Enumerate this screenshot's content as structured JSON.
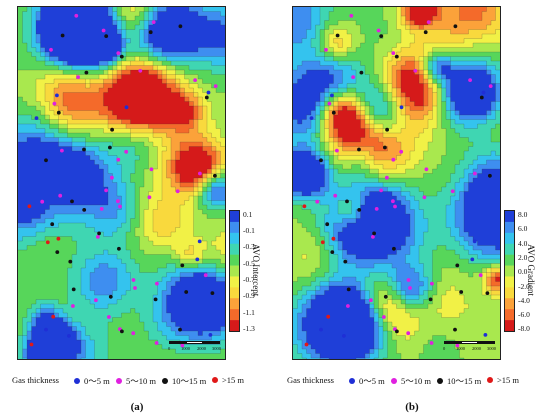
{
  "panels": [
    {
      "id": "a",
      "caption": "(a)",
      "colorbar_label": "AVO Intercept",
      "colorbar_ticks": [
        "0.1",
        "-0.1",
        "-0.3",
        "-0.5",
        "-0.7",
        "-0.9",
        "-1.1",
        "-1.3"
      ],
      "colorbar_range": [
        -1.3,
        0.1
      ]
    },
    {
      "id": "b",
      "caption": "(b)",
      "colorbar_label": "AVO Gradient",
      "colorbar_ticks": [
        "8.0",
        "6.0",
        "4.0",
        "2.0",
        "0.0",
        "-2.0",
        "-4.0",
        "-6.0",
        "-8.0"
      ],
      "colorbar_range": [
        -8.0,
        8.0
      ]
    }
  ],
  "scalebar": {
    "ticks": [
      "0",
      "1000",
      "2000",
      "3000"
    ],
    "unit": "m"
  },
  "legend": {
    "title": "Gas thickness",
    "items": [
      {
        "label": "0～5 m",
        "color": "#1f2fd6"
      },
      {
        "label": "5～10 m",
        "color": "#e020e0"
      },
      {
        "label": "10～15 m",
        "color": "#111111"
      },
      {
        "label": ">15 m",
        "color": "#e01818"
      }
    ]
  },
  "colors": {
    "colormap": [
      "#d51a1a",
      "#f46a2a",
      "#fba23a",
      "#f9d93d",
      "#f1f146",
      "#a9e84e",
      "#57d65a",
      "#3fd6b2",
      "#34c3ee",
      "#3e8ef0",
      "#1f3fd8"
    ]
  },
  "icons": {
    "well_marker": "circle-dot"
  }
}
